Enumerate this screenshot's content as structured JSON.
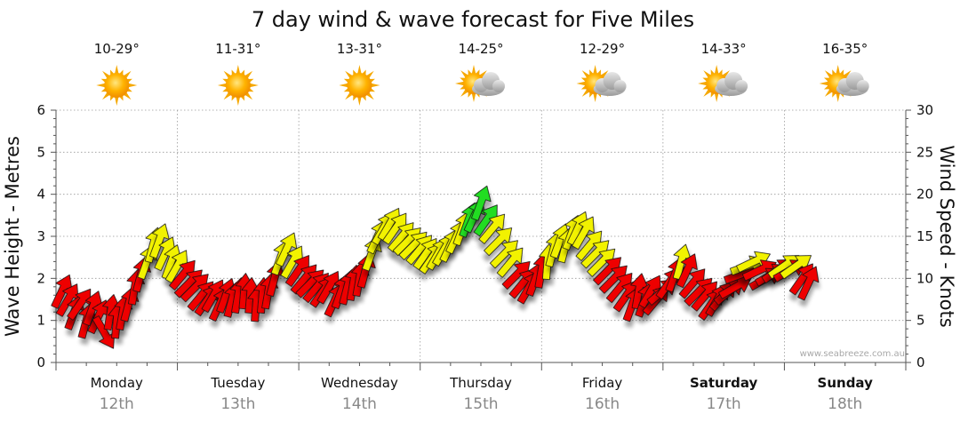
{
  "title": "7 day wind & wave forecast for Five Miles",
  "watermark": "www.seabreeze.com.au",
  "colors": {
    "strong": "#ee0000",
    "moderate": "#f2f200",
    "light": "#22dd22",
    "arrow_stroke": "#111111",
    "grid": "#999999"
  },
  "days": [
    {
      "name": "Monday",
      "date": "12th",
      "temp": "10-29°",
      "icon": "sunny-icon",
      "bold": false
    },
    {
      "name": "Tuesday",
      "date": "13th",
      "temp": "11-31°",
      "icon": "sunny-icon",
      "bold": false
    },
    {
      "name": "Wednesday",
      "date": "14th",
      "temp": "13-31°",
      "icon": "sunny-icon",
      "bold": false
    },
    {
      "name": "Thursday",
      "date": "15th",
      "temp": "14-25°",
      "icon": "partly-cloudy-icon",
      "bold": false
    },
    {
      "name": "Friday",
      "date": "16th",
      "temp": "12-29°",
      "icon": "partly-cloudy-icon",
      "bold": false
    },
    {
      "name": "Saturday",
      "date": "17th",
      "temp": "14-33°",
      "icon": "partly-cloudy-icon",
      "bold": true
    },
    {
      "name": "Sunday",
      "date": "18th",
      "temp": "16-35°",
      "icon": "partly-cloudy-icon",
      "bold": true
    }
  ],
  "chart_data": {
    "type": "scatter",
    "title": "7 day wind & wave forecast for Five Miles",
    "xlabel": "",
    "ylabel_left": "Wave Height - Metres",
    "ylabel_right": "Wind Speed - Knots",
    "ylim_left": [
      0,
      6
    ],
    "ylim_right": [
      0,
      30
    ],
    "yticks_left": [
      "0",
      "1",
      "2",
      "3",
      "4",
      "5",
      "6"
    ],
    "yticks_right": [
      "0",
      "5",
      "10",
      "15",
      "20",
      "25",
      "30"
    ],
    "grid": true,
    "x_unit": "day index (0 = start of Monday 12th)",
    "series": [
      {
        "name": "Wind speed (knots) & direction (degrees arrow points to)",
        "points": [
          [
            0.05,
            8.5,
            25
          ],
          [
            0.1,
            7.5,
            30
          ],
          [
            0.15,
            6.0,
            20
          ],
          [
            0.2,
            7.0,
            35
          ],
          [
            0.25,
            5.0,
            15
          ],
          [
            0.3,
            6.5,
            20
          ],
          [
            0.35,
            5.5,
            25
          ],
          [
            0.4,
            3.5,
            150
          ],
          [
            0.45,
            6.0,
            10
          ],
          [
            0.5,
            5.0,
            5
          ],
          [
            0.55,
            6.0,
            10
          ],
          [
            0.6,
            7.0,
            15
          ],
          [
            0.65,
            9.0,
            10
          ],
          [
            0.7,
            10.5,
            15
          ],
          [
            0.75,
            12.0,
            20
          ],
          [
            0.8,
            14.0,
            15
          ],
          [
            0.85,
            14.5,
            20
          ],
          [
            0.9,
            13.0,
            25
          ],
          [
            0.95,
            12.0,
            20
          ],
          [
            1.0,
            11.5,
            30
          ],
          [
            1.05,
            10.5,
            40
          ],
          [
            1.1,
            9.5,
            45
          ],
          [
            1.15,
            9.0,
            45
          ],
          [
            1.2,
            8.0,
            40
          ],
          [
            1.25,
            7.5,
            35
          ],
          [
            1.3,
            8.0,
            30
          ],
          [
            1.35,
            7.0,
            25
          ],
          [
            1.4,
            8.0,
            20
          ],
          [
            1.45,
            7.5,
            15
          ],
          [
            1.5,
            8.0,
            10
          ],
          [
            1.55,
            8.5,
            5
          ],
          [
            1.6,
            8.0,
            5
          ],
          [
            1.65,
            7.0,
            5
          ],
          [
            1.7,
            8.0,
            5
          ],
          [
            1.75,
            8.5,
            10
          ],
          [
            1.8,
            10.0,
            15
          ],
          [
            1.85,
            12.5,
            20
          ],
          [
            1.9,
            13.5,
            25
          ],
          [
            1.95,
            12.0,
            30
          ],
          [
            2.0,
            11.0,
            35
          ],
          [
            2.05,
            10.0,
            40
          ],
          [
            2.1,
            9.5,
            45
          ],
          [
            2.15,
            9.0,
            40
          ],
          [
            2.2,
            8.5,
            35
          ],
          [
            2.25,
            9.0,
            30
          ],
          [
            2.3,
            7.5,
            25
          ],
          [
            2.35,
            8.5,
            20
          ],
          [
            2.4,
            9.0,
            15
          ],
          [
            2.45,
            9.5,
            10
          ],
          [
            2.5,
            10.0,
            10
          ],
          [
            2.55,
            11.0,
            15
          ],
          [
            2.6,
            13.0,
            20
          ],
          [
            2.65,
            15.0,
            25
          ],
          [
            2.7,
            16.0,
            30
          ],
          [
            2.75,
            16.5,
            30
          ],
          [
            2.8,
            16.0,
            35
          ],
          [
            2.85,
            15.0,
            40
          ],
          [
            2.9,
            14.5,
            45
          ],
          [
            2.95,
            14.0,
            45
          ],
          [
            3.0,
            13.5,
            40
          ],
          [
            3.05,
            13.0,
            35
          ],
          [
            3.1,
            12.5,
            35
          ],
          [
            3.15,
            13.0,
            30
          ],
          [
            3.2,
            13.5,
            30
          ],
          [
            3.25,
            14.0,
            25
          ],
          [
            3.3,
            15.0,
            25
          ],
          [
            3.35,
            16.0,
            20
          ],
          [
            3.4,
            17.0,
            20
          ],
          [
            3.45,
            17.5,
            25
          ],
          [
            3.5,
            19.0,
            20
          ],
          [
            3.55,
            17.0,
            35
          ],
          [
            3.6,
            16.0,
            40
          ],
          [
            3.65,
            14.5,
            45
          ],
          [
            3.7,
            13.0,
            45
          ],
          [
            3.75,
            12.0,
            40
          ],
          [
            3.8,
            10.5,
            45
          ],
          [
            3.85,
            9.5,
            40
          ],
          [
            3.9,
            9.0,
            30
          ],
          [
            3.95,
            10.0,
            20
          ],
          [
            4.0,
            11.0,
            10
          ],
          [
            4.05,
            12.0,
            5
          ],
          [
            4.1,
            13.5,
            15
          ],
          [
            4.15,
            14.5,
            20
          ],
          [
            4.2,
            14.0,
            15
          ],
          [
            4.25,
            15.5,
            20
          ],
          [
            4.3,
            16.0,
            25
          ],
          [
            4.35,
            15.5,
            30
          ],
          [
            4.4,
            14.0,
            40
          ],
          [
            4.45,
            13.0,
            45
          ],
          [
            4.5,
            12.0,
            45
          ],
          [
            4.55,
            11.0,
            45
          ],
          [
            4.6,
            10.0,
            45
          ],
          [
            4.65,
            9.0,
            40
          ],
          [
            4.7,
            8.0,
            35
          ],
          [
            4.75,
            7.0,
            20
          ],
          [
            4.8,
            8.5,
            10
          ],
          [
            4.85,
            7.5,
            20
          ],
          [
            4.9,
            8.5,
            30
          ],
          [
            4.95,
            7.5,
            40
          ],
          [
            5.0,
            8.5,
            50
          ],
          [
            5.05,
            9.5,
            35
          ],
          [
            5.1,
            10.5,
            20
          ],
          [
            5.15,
            12.0,
            15
          ],
          [
            5.2,
            11.0,
            25
          ],
          [
            5.25,
            9.5,
            40
          ],
          [
            5.3,
            8.5,
            45
          ],
          [
            5.35,
            8.0,
            40
          ],
          [
            5.4,
            7.0,
            35
          ],
          [
            5.45,
            7.5,
            30
          ],
          [
            5.5,
            8.0,
            40
          ],
          [
            5.55,
            8.5,
            50
          ],
          [
            5.6,
            9.0,
            60
          ],
          [
            5.65,
            10.5,
            70
          ],
          [
            5.7,
            11.5,
            70
          ],
          [
            5.75,
            12.0,
            65
          ],
          [
            5.8,
            11.0,
            65
          ],
          [
            5.85,
            10.0,
            60
          ],
          [
            5.9,
            10.5,
            60
          ],
          [
            5.95,
            11.0,
            55
          ],
          [
            6.0,
            11.5,
            55
          ],
          [
            6.05,
            11.0,
            60
          ],
          [
            6.1,
            11.5,
            55
          ],
          [
            6.15,
            10.0,
            35
          ],
          [
            6.2,
            9.5,
            25
          ]
        ]
      }
    ]
  }
}
